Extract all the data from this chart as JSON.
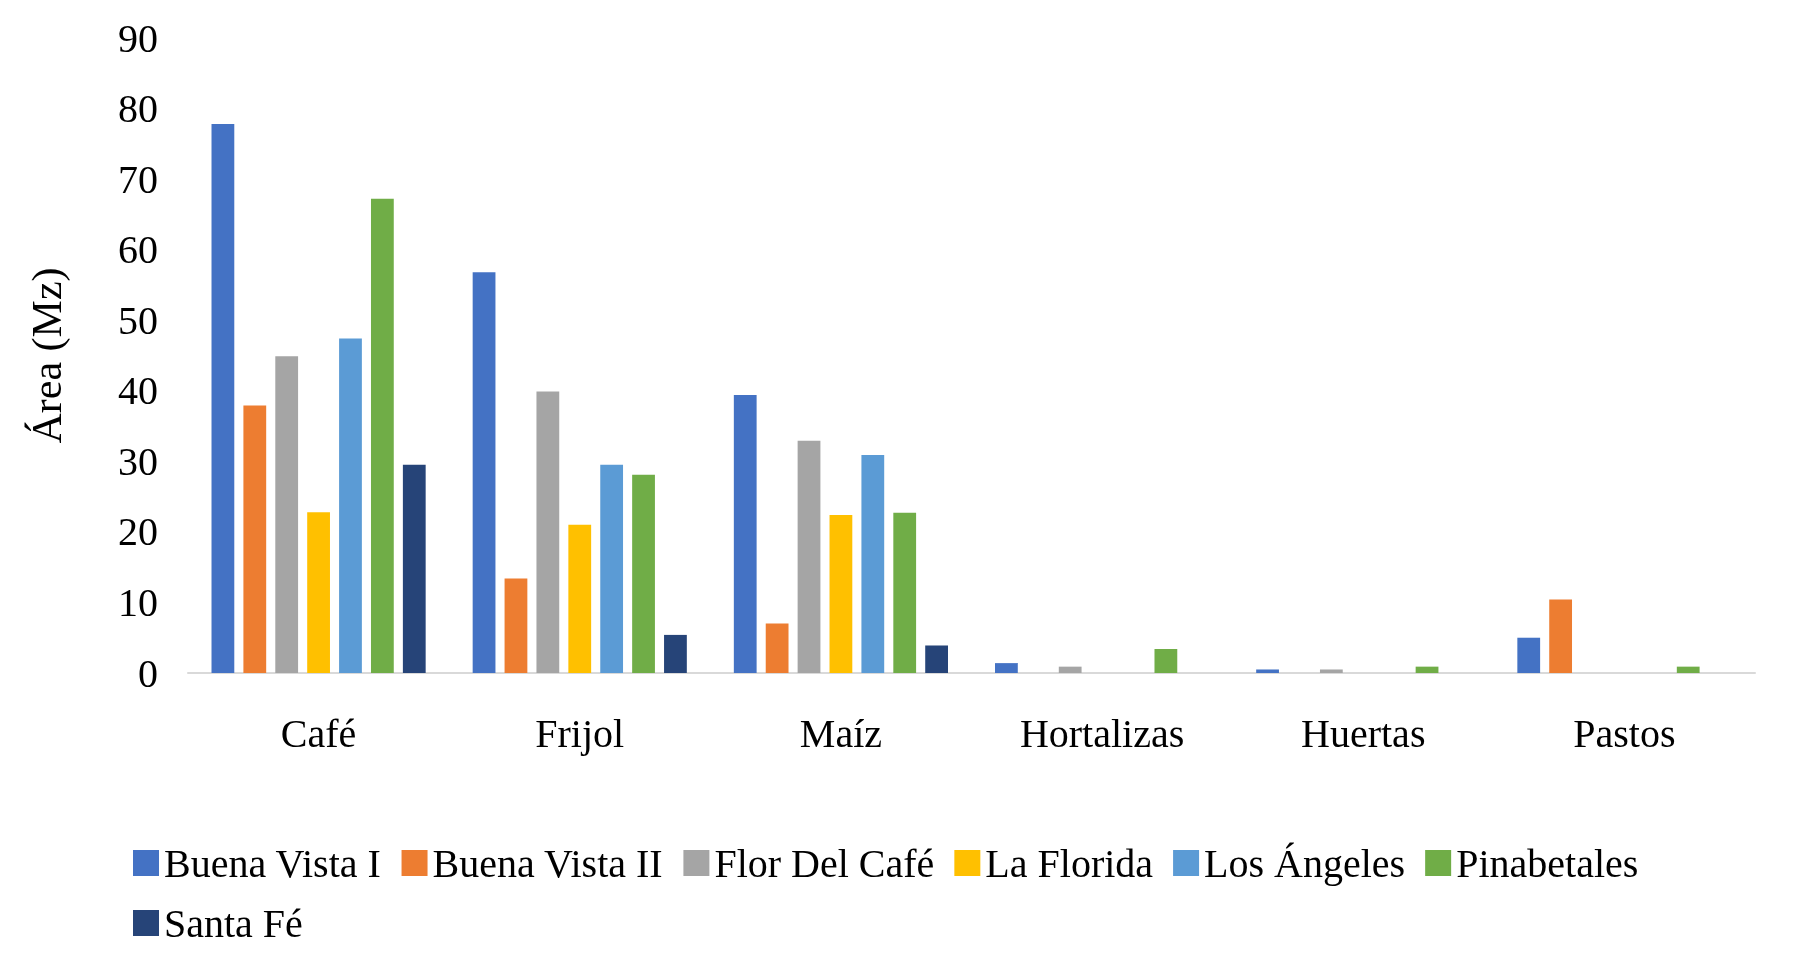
{
  "chart_data": {
    "type": "bar",
    "ylabel": "Área (Mz)",
    "categories": [
      "Café",
      "Frijol",
      "Maíz",
      "Hortalizas",
      "Huertas",
      "Pastos"
    ],
    "series": [
      {
        "name": "Buena Vista I",
        "color": "#4472c4",
        "values": [
          77.8,
          56.8,
          39.4,
          1.4,
          0.5,
          5
        ]
      },
      {
        "name": "Buena Vista II",
        "color": "#ed7d31",
        "values": [
          37.9,
          13.4,
          7,
          null,
          null,
          10.4
        ]
      },
      {
        "name": "Flor Del Café",
        "color": "#a5a5a5",
        "values": [
          44.9,
          39.9,
          32.9,
          0.9,
          0.5,
          null
        ]
      },
      {
        "name": "La Florida",
        "color": "#ffc000",
        "values": [
          22.8,
          21,
          22.4,
          null,
          null,
          null
        ]
      },
      {
        "name": "Los Ángeles",
        "color": "#5b9bd5",
        "values": [
          47.4,
          29.5,
          30.9,
          null,
          null,
          null
        ]
      },
      {
        "name": "Pinabetales",
        "color": "#70ad47",
        "values": [
          67.2,
          28.1,
          22.7,
          3.4,
          0.9,
          0.9
        ]
      },
      {
        "name": "Santa Fé",
        "color": "#264478",
        "values": [
          29.5,
          5.4,
          3.9,
          null,
          null,
          null
        ]
      }
    ],
    "ylim": [
      0,
      90
    ],
    "yticks": [
      0,
      10,
      20,
      30,
      40,
      50,
      60,
      70,
      80,
      90
    ],
    "grid": false,
    "legend": "bottom"
  }
}
